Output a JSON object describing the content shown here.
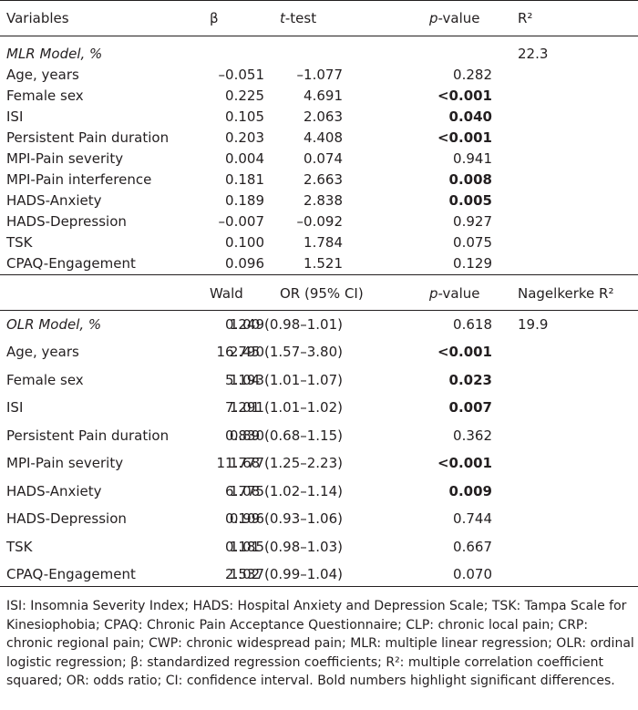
{
  "header1": {
    "variables": "Variables",
    "c1": "β",
    "c2_italic": "t",
    "c2_rest": "-test",
    "c3_italic": "p",
    "c3_rest": "-value",
    "c4": "R²"
  },
  "mlr": {
    "title": "MLR Model, %",
    "r2": "22.3",
    "rows": [
      {
        "name": "Age, years",
        "beta": "–0.051",
        "t": "–1.077",
        "p": "0.282",
        "sig": false
      },
      {
        "name": "Female sex",
        "beta": "0.225",
        "t": "4.691",
        "p": "<0.001",
        "sig": true
      },
      {
        "name": "ISI",
        "beta": "0.105",
        "t": "2.063",
        "p": "0.040",
        "sig": true
      },
      {
        "name": "Persistent Pain duration",
        "beta": "0.203",
        "t": "4.408",
        "p": "<0.001",
        "sig": true
      },
      {
        "name": "MPI-Pain severity",
        "beta": "0.004",
        "t": "0.074",
        "p": "0.941",
        "sig": false
      },
      {
        "name": "MPI-Pain interference",
        "beta": "0.181",
        "t": "2.663",
        "p": "0.008",
        "sig": true
      },
      {
        "name": "HADS-Anxiety",
        "beta": "0.189",
        "t": "2.838",
        "p": "0.005",
        "sig": true
      },
      {
        "name": "HADS-Depression",
        "beta": "–0.007",
        "t": "–0.092",
        "p": "0.927",
        "sig": false
      },
      {
        "name": "TSK",
        "beta": "0.100",
        "t": "1.784",
        "p": "0.075",
        "sig": false
      },
      {
        "name": "CPAQ-Engagement",
        "beta": "0.096",
        "t": "1.521",
        "p": "0.129",
        "sig": false
      }
    ]
  },
  "header2": {
    "c1": "Wald",
    "c2": "OR (95% CI)",
    "c3_italic": "p",
    "c3_rest": "-value",
    "c4": "Nagelkerke R²"
  },
  "olr": {
    "title": "OLR Model, %",
    "title_wald": "0.249",
    "title_or": "1.00 (0.98–1.01)",
    "title_p": "0.618",
    "r2": "19.9",
    "rows": [
      {
        "name": "Age, years",
        "wald": "16.790",
        "or": "2.45 (1.57–3.80)",
        "p": "<0.001",
        "sig": true
      },
      {
        "name": "Female sex",
        "wald": "5.193",
        "or": "1.04 (1.01–1.07)",
        "p": "0.023",
        "sig": true
      },
      {
        "name": "ISI",
        "wald": "7.291",
        "or": "1.01 (1.01–1.02)",
        "p": "0.007",
        "sig": true
      },
      {
        "name": "Persistent Pain duration",
        "wald": "0.830",
        "or": "0.89 (0.68–1.15)",
        "p": "0.362",
        "sig": false
      },
      {
        "name": "MPI-Pain severity",
        "wald": "11.777",
        "or": "1.68 (1.25–2.23)",
        "p": "<0.001",
        "sig": true
      },
      {
        "name": "HADS-Anxiety",
        "wald": "6.775",
        "or": "1.08 (1.02–1.14)",
        "p": "0.009",
        "sig": true
      },
      {
        "name": "HADS-Depression",
        "wald": "0.106",
        "or": "0.99 (0.93–1.06)",
        "p": "0.744",
        "sig": false
      },
      {
        "name": "TSK",
        "wald": "0.185",
        "or": "1.01 (0.98–1.03)",
        "p": "0.667",
        "sig": false
      },
      {
        "name": "CPAQ-Engagement",
        "wald": "2.537",
        "or": "1.02 (0.99–1.04)",
        "p": "0.070",
        "sig": false
      }
    ]
  },
  "footnote": "ISI: Insomnia Severity Index; HADS: Hospital Anxiety and Depression Scale; TSK: Tampa Scale for Kinesiophobia; CPAQ: Chronic Pain Acceptance Questionnaire; CLP: chronic local pain; CRP: chronic regional pain; CWP: chronic widespread pain; MLR: multiple linear regression; OLR: ordinal logistic regression; β: standardized regression coefficients; R²: multiple correlation coefficient squared; OR: odds ratio; CI: confidence interval. Bold numbers highlight significant differences."
}
